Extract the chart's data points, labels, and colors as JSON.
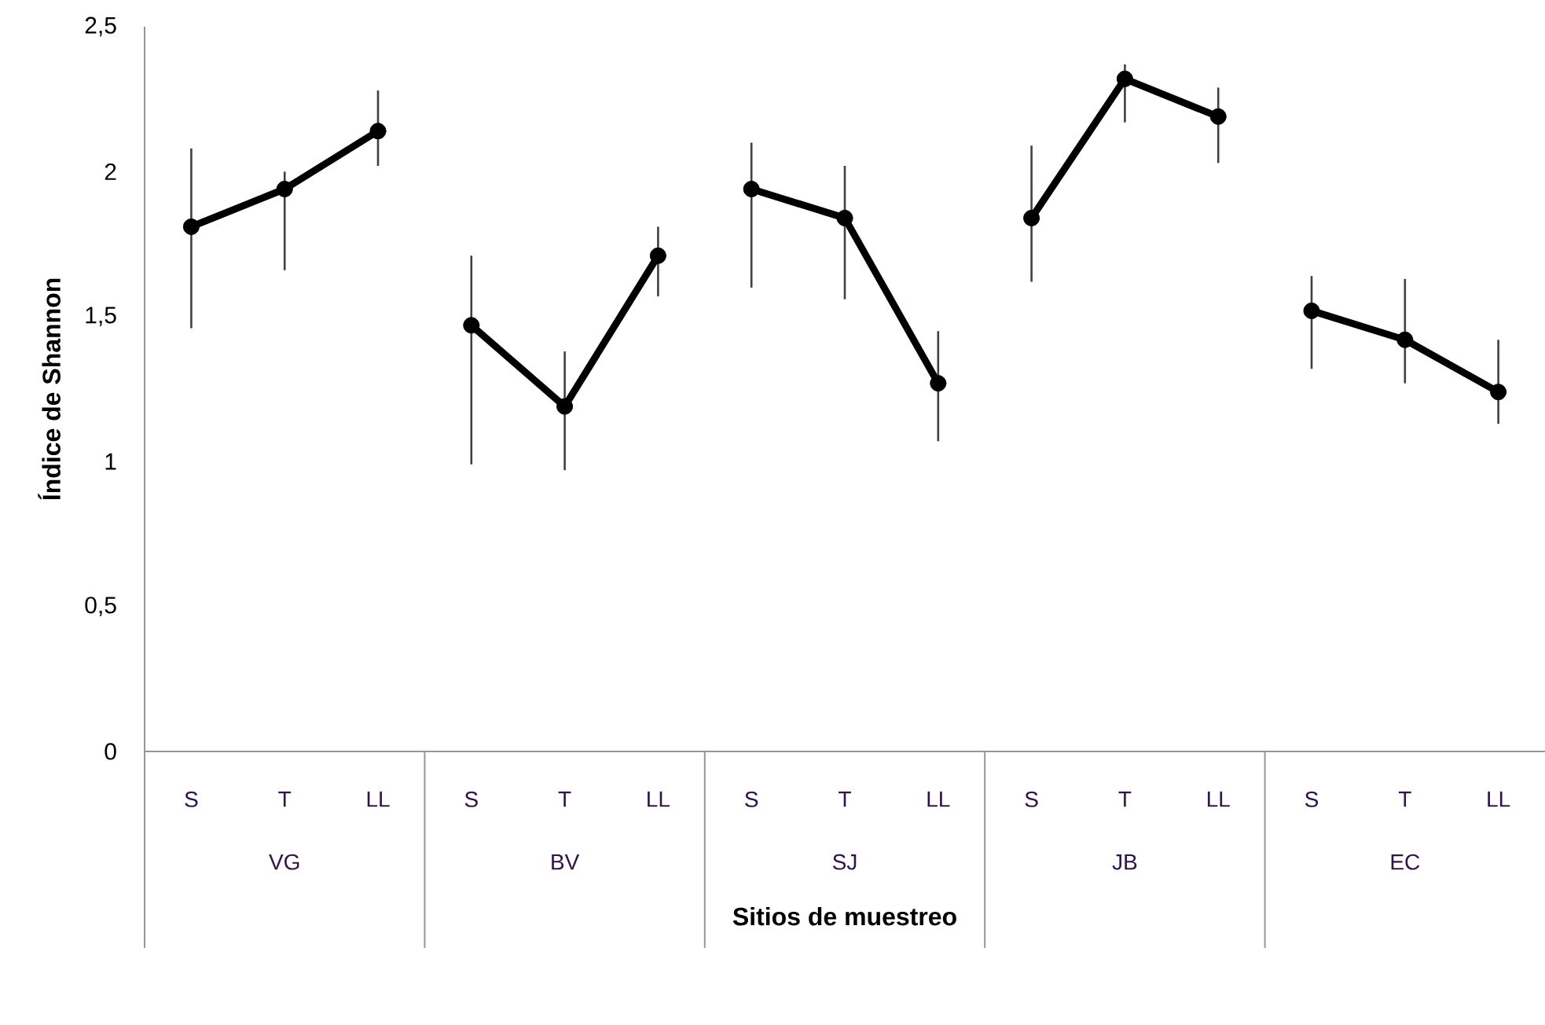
{
  "chart_data": {
    "type": "line",
    "xlabel": "Sitios de muestreo",
    "ylabel": "Índice de Shannon",
    "categories": [
      "S",
      "T",
      "LL",
      "S",
      "T",
      "LL",
      "S",
      "T",
      "LL",
      "S",
      "T",
      "LL",
      "S",
      "T",
      "LL"
    ],
    "annotations": [
      "VG",
      "BV",
      "SJ",
      "JB",
      "EC"
    ],
    "ylim": [
      0,
      2.5
    ],
    "yticks": [
      0,
      {
        "value": 0.5,
        "label": "0,5"
      },
      1,
      {
        "value": 1.5,
        "label": "1,5"
      },
      2,
      {
        "value": 2.5,
        "label": "2,5"
      }
    ],
    "marker": "circle",
    "line_style": "solid",
    "series": [
      {
        "color": "#000000",
        "values": [
          1.81,
          1.94,
          2.14,
          null,
          null,
          null,
          null,
          null,
          null,
          null,
          null,
          null,
          null,
          null,
          null
        ],
        "errors": [
          [
            1.46,
            2.08
          ],
          [
            1.66,
            2.0
          ],
          [
            2.02,
            2.28
          ],
          null,
          null,
          null,
          null,
          null,
          null,
          null,
          null,
          null,
          null,
          null,
          null
        ]
      },
      {
        "color": "#000000",
        "values": [
          null,
          null,
          null,
          1.47,
          1.19,
          1.71,
          null,
          null,
          null,
          null,
          null,
          null,
          null,
          null,
          null
        ],
        "errors": [
          null,
          null,
          null,
          [
            0.99,
            1.71
          ],
          [
            0.97,
            1.38
          ],
          [
            1.57,
            1.81
          ],
          null,
          null,
          null,
          null,
          null,
          null,
          null,
          null,
          null
        ]
      },
      {
        "color": "#000000",
        "values": [
          null,
          null,
          null,
          null,
          null,
          null,
          1.94,
          1.84,
          1.27,
          null,
          null,
          null,
          null,
          null,
          null
        ],
        "errors": [
          null,
          null,
          null,
          null,
          null,
          null,
          [
            1.6,
            2.1
          ],
          [
            1.56,
            2.02
          ],
          [
            1.07,
            1.45
          ],
          null,
          null,
          null,
          null,
          null,
          null
        ]
      },
      {
        "color": "#000000",
        "values": [
          null,
          null,
          null,
          null,
          null,
          null,
          null,
          null,
          null,
          1.84,
          2.32,
          2.19,
          null,
          null,
          null
        ],
        "errors": [
          null,
          null,
          null,
          null,
          null,
          null,
          null,
          null,
          null,
          [
            1.62,
            2.09
          ],
          [
            2.17,
            2.37
          ],
          [
            2.03,
            2.29
          ],
          null,
          null,
          null
        ]
      },
      {
        "color": "#000000",
        "values": [
          null,
          null,
          null,
          null,
          null,
          null,
          null,
          null,
          null,
          null,
          null,
          null,
          1.52,
          1.42,
          1.24
        ],
        "errors": [
          null,
          null,
          null,
          null,
          null,
          null,
          null,
          null,
          null,
          null,
          null,
          null,
          [
            1.32,
            1.64
          ],
          [
            1.27,
            1.63
          ],
          [
            1.13,
            1.42
          ]
        ]
      }
    ]
  }
}
